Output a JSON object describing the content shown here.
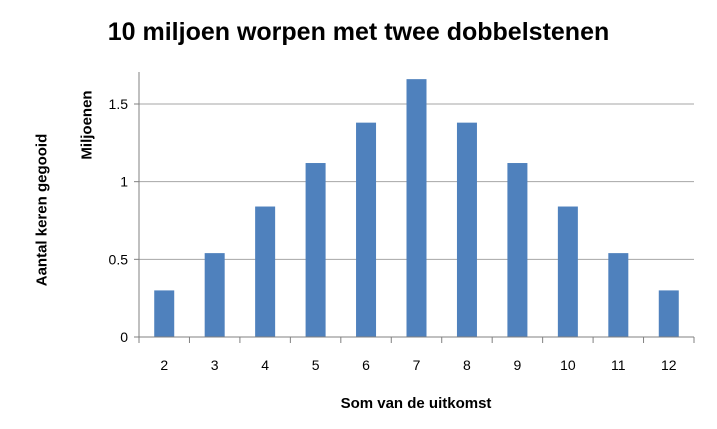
{
  "chart_data": {
    "type": "bar",
    "title": "10 miljoen worpen met twee dobbelstenen",
    "xlabel": "Som van de uitkomst",
    "ylabel": "Aantal keren gegooid",
    "y_unit_label": "Miljoenen",
    "categories": [
      "2",
      "3",
      "4",
      "5",
      "6",
      "7",
      "8",
      "9",
      "10",
      "11",
      "12"
    ],
    "values": [
      0.3,
      0.54,
      0.84,
      1.12,
      1.38,
      1.66,
      1.38,
      1.12,
      0.84,
      0.54,
      0.3
    ],
    "ylim": [
      0,
      1.5
    ],
    "y_ticks": [
      "0",
      "0.5",
      "1",
      "1.5"
    ],
    "grid": true,
    "bar_color": "#4F81BD",
    "grid_color": "#A6A6A6",
    "legend": "none"
  }
}
